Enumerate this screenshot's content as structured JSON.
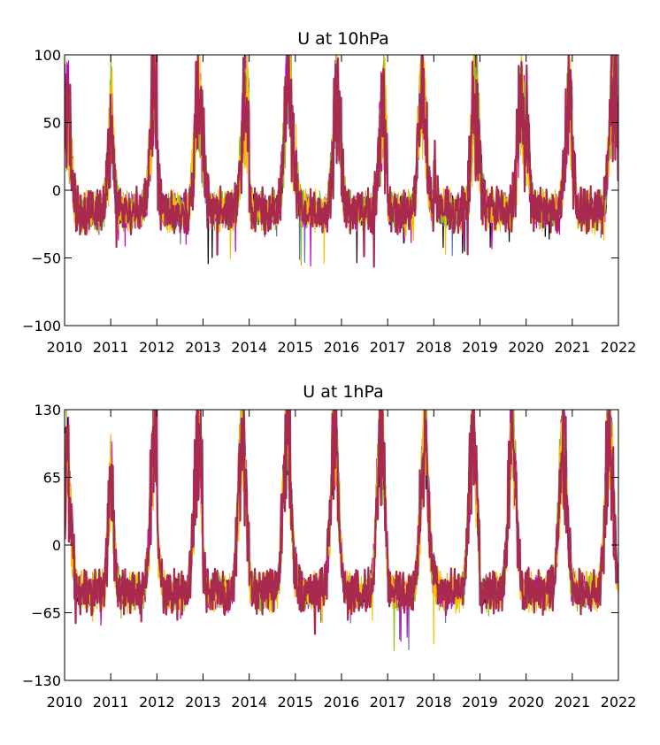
{
  "chart_data": [
    {
      "type": "area",
      "title": "U at 10hPa",
      "xlabel": "",
      "ylabel": "",
      "xlim": [
        2010,
        2022
      ],
      "ylim": [
        -100,
        100
      ],
      "xticks": [
        "2010",
        "2011",
        "2012",
        "2013",
        "2014",
        "2015",
        "2016",
        "2017",
        "2018",
        "2019",
        "2020",
        "2021",
        "2022"
      ],
      "yticks": [
        "100",
        "50",
        "0",
        "−50",
        "−100"
      ],
      "ytick_values": [
        100,
        50,
        0,
        -50,
        -100
      ],
      "grid": false,
      "series_colors": [
        "#000000",
        "#6a6fb4",
        "#c800c8",
        "#8fbf1f",
        "#ffbf00",
        "#a82a4e"
      ],
      "annual_cycle": {
        "x": [
          2010.0,
          2011.0,
          2012.0,
          2013.0,
          2014.0,
          2015.0,
          2016.0,
          2017.0,
          2018.0,
          2019.0,
          2020.0,
          2021.0,
          2022.0
        ],
        "winter_peak_max": [
          72,
          95,
          80,
          85,
          100,
          80,
          70,
          95,
          80,
          82,
          85,
          97
        ],
        "winter_peak_year_frac": [
          0.05,
          0.95,
          0.9,
          0.92,
          0.85,
          0.9,
          0.9,
          0.75,
          0.9,
          0.9,
          0.95,
          0.9
        ],
        "summer_min": [
          -35,
          -45,
          -40,
          -55,
          -35,
          -60,
          -60,
          -40,
          -50,
          -45,
          -40,
          -40,
          -35
        ],
        "summer_baseline": -15
      }
    },
    {
      "type": "area",
      "title": "U at 1hPa",
      "xlabel": "",
      "ylabel": "",
      "xlim": [
        2010,
        2022
      ],
      "ylim": [
        -130,
        130
      ],
      "xticks": [
        "2010",
        "2011",
        "2012",
        "2013",
        "2014",
        "2015",
        "2016",
        "2017",
        "2018",
        "2019",
        "2020",
        "2021",
        "2022"
      ],
      "yticks": [
        "130",
        "65",
        "0",
        "−65",
        "−130"
      ],
      "ytick_values": [
        130,
        65,
        0,
        -65,
        -130
      ],
      "grid": false,
      "series_colors": [
        "#000000",
        "#6a6fb4",
        "#c800c8",
        "#8fbf1f",
        "#ffbf00",
        "#a82a4e"
      ],
      "annual_cycle": {
        "x": [
          2010.0,
          2011.0,
          2012.0,
          2013.0,
          2014.0,
          2015.0,
          2016.0,
          2017.0,
          2018.0,
          2019.0,
          2020.0,
          2021.0,
          2022.0
        ],
        "winter_peak_max": [
          100,
          130,
          130,
          130,
          135,
          130,
          135,
          130,
          130,
          130,
          130,
          135
        ],
        "winter_peak_year_frac": [
          0.05,
          0.95,
          0.9,
          0.85,
          0.82,
          0.85,
          0.85,
          0.8,
          0.85,
          0.7,
          0.8,
          0.8
        ],
        "summer_min": [
          -80,
          -75,
          -75,
          -70,
          -65,
          -90,
          -75,
          -110,
          -75,
          -70,
          -65,
          -60,
          -50
        ],
        "summer_baseline": -45
      }
    }
  ]
}
